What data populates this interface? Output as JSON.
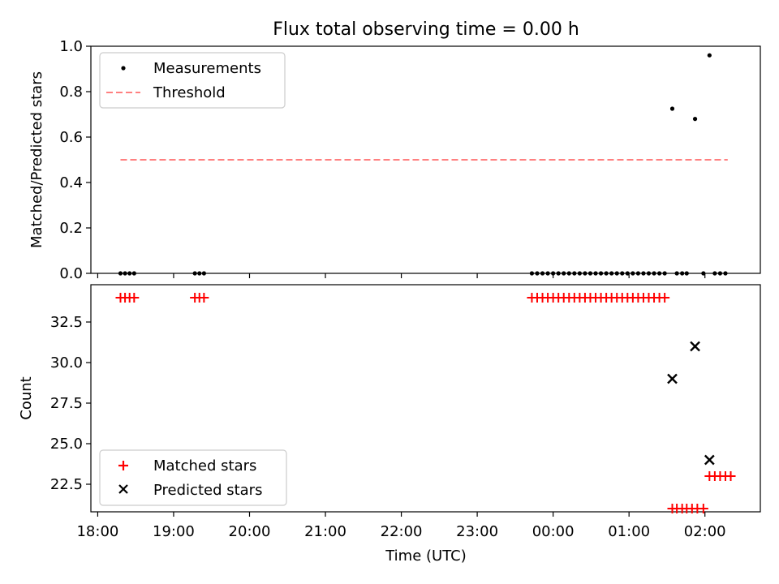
{
  "chart_data": {
    "type": "scatter",
    "title": "Flux total observing time = 0.00 h",
    "xlabel": "Time (UTC)",
    "x_unit": "hours since 18:00 UTC",
    "x_ticks": [
      {
        "label": "18:00",
        "value": 0
      },
      {
        "label": "19:00",
        "value": 1
      },
      {
        "label": "20:00",
        "value": 2
      },
      {
        "label": "21:00",
        "value": 3
      },
      {
        "label": "22:00",
        "value": 4
      },
      {
        "label": "23:00",
        "value": 5
      },
      {
        "label": "00:00",
        "value": 6
      },
      {
        "label": "01:00",
        "value": 7
      },
      {
        "label": "02:00",
        "value": 8
      }
    ],
    "xlim": [
      -0.09,
      8.73
    ],
    "panels": [
      {
        "ylabel": "Matched/Predicted stars",
        "ylim": [
          0,
          1.0
        ],
        "yticks": [
          0.0,
          0.2,
          0.4,
          0.6,
          0.8,
          1.0
        ],
        "ytick_labels": [
          "0.0",
          "0.2",
          "0.4",
          "0.6",
          "0.8",
          "1.0"
        ],
        "legend": {
          "position": "upper-left",
          "entries": [
            "Measurements",
            "Threshold"
          ]
        },
        "series": [
          {
            "name": "Measurements",
            "marker": "dot",
            "color": "#000000",
            "points": [
              [
                0.3,
                0
              ],
              [
                0.36,
                0
              ],
              [
                0.42,
                0
              ],
              [
                0.48,
                0
              ],
              [
                1.28,
                0
              ],
              [
                1.34,
                0
              ],
              [
                1.4,
                0
              ],
              [
                5.72,
                0
              ],
              [
                5.79,
                0
              ],
              [
                5.86,
                0
              ],
              [
                5.93,
                0
              ],
              [
                6.0,
                0
              ],
              [
                6.07,
                0
              ],
              [
                6.14,
                0
              ],
              [
                6.21,
                0
              ],
              [
                6.28,
                0
              ],
              [
                6.35,
                0
              ],
              [
                6.42,
                0
              ],
              [
                6.49,
                0
              ],
              [
                6.56,
                0
              ],
              [
                6.63,
                0
              ],
              [
                6.7,
                0
              ],
              [
                6.77,
                0
              ],
              [
                6.84,
                0
              ],
              [
                6.91,
                0
              ],
              [
                6.98,
                0
              ],
              [
                7.05,
                0
              ],
              [
                7.12,
                0
              ],
              [
                7.19,
                0
              ],
              [
                7.26,
                0
              ],
              [
                7.33,
                0
              ],
              [
                7.4,
                0
              ],
              [
                7.47,
                0
              ],
              [
                7.57,
                0.725
              ],
              [
                7.63,
                0
              ],
              [
                7.7,
                0
              ],
              [
                7.76,
                0
              ],
              [
                7.87,
                0.68
              ],
              [
                7.98,
                0
              ],
              [
                8.06,
                0.96
              ],
              [
                8.13,
                0
              ],
              [
                8.2,
                0
              ],
              [
                8.27,
                0
              ]
            ]
          },
          {
            "name": "Threshold",
            "style": "dashed",
            "color": "#ff8080",
            "points": [
              [
                0.3,
                0.5
              ],
              [
                8.3,
                0.5
              ]
            ]
          }
        ]
      },
      {
        "ylabel": "Count",
        "ylim": [
          20.8,
          34.8
        ],
        "yticks": [
          22.5,
          25.0,
          27.5,
          30.0,
          32.5
        ],
        "ytick_labels": [
          "22.5",
          "25.0",
          "27.5",
          "30.0",
          "32.5"
        ],
        "legend": {
          "position": "lower-left",
          "entries": [
            "Matched stars",
            "Predicted stars"
          ]
        },
        "series": [
          {
            "name": "Matched stars",
            "marker": "plus",
            "color": "#ff0000",
            "points": [
              [
                0.3,
                34
              ],
              [
                0.36,
                34
              ],
              [
                0.42,
                34
              ],
              [
                0.48,
                34
              ],
              [
                1.28,
                34
              ],
              [
                1.34,
                34
              ],
              [
                1.4,
                34
              ],
              [
                5.72,
                34
              ],
              [
                5.79,
                34
              ],
              [
                5.86,
                34
              ],
              [
                5.93,
                34
              ],
              [
                6.0,
                34
              ],
              [
                6.07,
                34
              ],
              [
                6.14,
                34
              ],
              [
                6.21,
                34
              ],
              [
                6.28,
                34
              ],
              [
                6.35,
                34
              ],
              [
                6.42,
                34
              ],
              [
                6.49,
                34
              ],
              [
                6.56,
                34
              ],
              [
                6.63,
                34
              ],
              [
                6.7,
                34
              ],
              [
                6.77,
                34
              ],
              [
                6.84,
                34
              ],
              [
                6.91,
                34
              ],
              [
                6.98,
                34
              ],
              [
                7.05,
                34
              ],
              [
                7.12,
                34
              ],
              [
                7.19,
                34
              ],
              [
                7.26,
                34
              ],
              [
                7.33,
                34
              ],
              [
                7.4,
                34
              ],
              [
                7.47,
                34
              ],
              [
                7.57,
                21
              ],
              [
                7.63,
                21
              ],
              [
                7.7,
                21
              ],
              [
                7.76,
                21
              ],
              [
                7.83,
                21
              ],
              [
                7.9,
                21
              ],
              [
                7.98,
                21
              ],
              [
                8.06,
                23
              ],
              [
                8.13,
                23
              ],
              [
                8.2,
                23
              ],
              [
                8.27,
                23
              ],
              [
                8.34,
                23
              ]
            ]
          },
          {
            "name": "Predicted stars",
            "marker": "x",
            "color": "#000000",
            "points": [
              [
                7.57,
                29
              ],
              [
                7.87,
                31
              ],
              [
                8.06,
                24
              ]
            ]
          }
        ]
      }
    ]
  }
}
